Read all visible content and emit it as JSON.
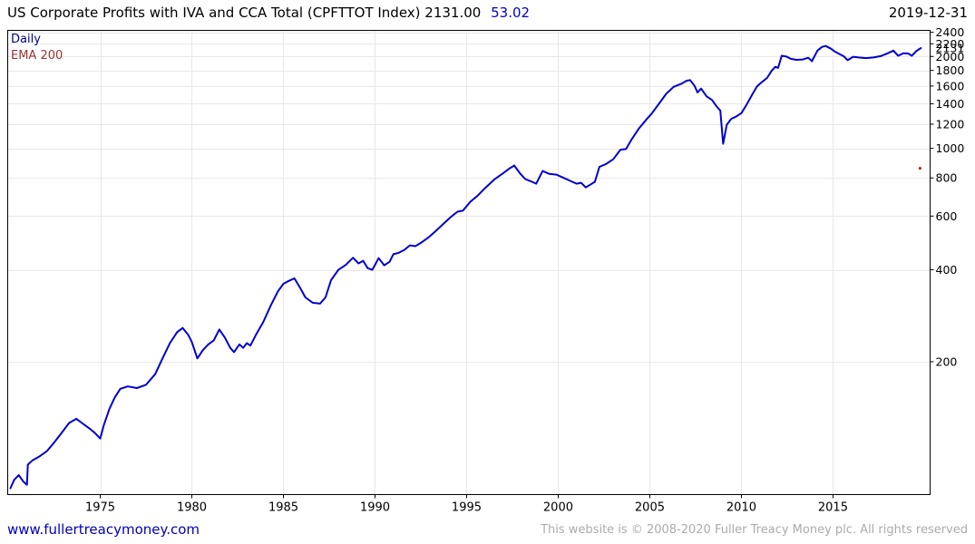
{
  "header": {
    "title": "US Corporate Profits with IVA and CCA Total (CPFTTOT Index) 2131.00",
    "change_value": "53.02",
    "date": "2019-12-31"
  },
  "legend": {
    "items": [
      {
        "label": "Daily",
        "color": "#00008B"
      },
      {
        "label": "EMA 200",
        "color": "#9C3333"
      }
    ]
  },
  "footer": {
    "site": "www.fullertreacymoney.com",
    "copyright": "This website is © 2008-2020 Fuller Treacy Money plc. All rights reserved"
  },
  "colors": {
    "line": "#0000CD",
    "grid": "#e8e8e8",
    "frame": "#000000",
    "change_text": "#0000CD",
    "site_link": "#0000BB",
    "copyright_text": "#ABABAB",
    "marker": "#CC0000"
  },
  "chart_data": {
    "type": "line",
    "title": "US Corporate Profits with IVA and CCA Total (CPFTTOT Index)",
    "last_value": 2131.0,
    "change": 53.02,
    "scale_y": "log",
    "grid": true,
    "legend_position": "top-left",
    "xlabel": "",
    "ylabel": "",
    "xlim": [
      1969.95,
      2020.3
    ],
    "ylim": [
      73.4,
      2435
    ],
    "x_ticks": [
      1975,
      1980,
      1985,
      1990,
      1995,
      2000,
      2005,
      2010,
      2015
    ],
    "y_ticks": [
      2400,
      2200,
      2000,
      1800,
      1600,
      1400,
      1200,
      1000,
      800,
      600,
      400,
      200
    ],
    "last_price_axis_label": "2131",
    "series": [
      {
        "name": "Daily",
        "color": "#0000CD",
        "points": [
          [
            1970.1,
            77
          ],
          [
            1970.3,
            82
          ],
          [
            1970.55,
            85
          ],
          [
            1970.8,
            81
          ],
          [
            1971.0,
            79
          ],
          [
            1971.05,
            92
          ],
          [
            1971.3,
            95
          ],
          [
            1971.7,
            98
          ],
          [
            1972.1,
            102
          ],
          [
            1972.5,
            109
          ],
          [
            1972.9,
            117
          ],
          [
            1973.3,
            126
          ],
          [
            1973.7,
            130
          ],
          [
            1974.0,
            126
          ],
          [
            1974.4,
            121
          ],
          [
            1974.7,
            117
          ],
          [
            1975.0,
            112
          ],
          [
            1975.2,
            124
          ],
          [
            1975.5,
            140
          ],
          [
            1975.8,
            153
          ],
          [
            1976.1,
            163
          ],
          [
            1976.5,
            166
          ],
          [
            1977.0,
            164
          ],
          [
            1977.5,
            168
          ],
          [
            1978.0,
            182
          ],
          [
            1978.4,
            205
          ],
          [
            1978.8,
            230
          ],
          [
            1979.2,
            250
          ],
          [
            1979.5,
            258
          ],
          [
            1979.8,
            245
          ],
          [
            1980.0,
            232
          ],
          [
            1980.3,
            205
          ],
          [
            1980.6,
            218
          ],
          [
            1980.9,
            228
          ],
          [
            1981.2,
            235
          ],
          [
            1981.5,
            255
          ],
          [
            1981.8,
            240
          ],
          [
            1982.1,
            222
          ],
          [
            1982.3,
            215
          ],
          [
            1982.6,
            228
          ],
          [
            1982.8,
            222
          ],
          [
            1983.0,
            230
          ],
          [
            1983.2,
            226
          ],
          [
            1983.5,
            245
          ],
          [
            1983.9,
            270
          ],
          [
            1984.3,
            305
          ],
          [
            1984.7,
            340
          ],
          [
            1985.0,
            360
          ],
          [
            1985.3,
            368
          ],
          [
            1985.6,
            375
          ],
          [
            1985.9,
            350
          ],
          [
            1986.2,
            325
          ],
          [
            1986.6,
            312
          ],
          [
            1987.0,
            310
          ],
          [
            1987.3,
            325
          ],
          [
            1987.6,
            370
          ],
          [
            1988.0,
            400
          ],
          [
            1988.4,
            415
          ],
          [
            1988.8,
            438
          ],
          [
            1989.1,
            420
          ],
          [
            1989.35,
            428
          ],
          [
            1989.6,
            405
          ],
          [
            1989.85,
            400
          ],
          [
            1990.2,
            437
          ],
          [
            1990.5,
            414
          ],
          [
            1990.8,
            425
          ],
          [
            1991.0,
            450
          ],
          [
            1991.3,
            455
          ],
          [
            1991.6,
            465
          ],
          [
            1991.9,
            481
          ],
          [
            1992.2,
            478
          ],
          [
            1992.5,
            490
          ],
          [
            1992.9,
            510
          ],
          [
            1993.3,
            535
          ],
          [
            1993.8,
            571
          ],
          [
            1994.2,
            600
          ],
          [
            1994.5,
            620
          ],
          [
            1994.8,
            625
          ],
          [
            1995.2,
            668
          ],
          [
            1995.6,
            700
          ],
          [
            1996.0,
            740
          ],
          [
            1996.5,
            790
          ],
          [
            1997.0,
            830
          ],
          [
            1997.35,
            860
          ],
          [
            1997.6,
            878
          ],
          [
            1997.9,
            830
          ],
          [
            1998.2,
            793
          ],
          [
            1998.5,
            780
          ],
          [
            1998.8,
            766
          ],
          [
            1999.15,
            843
          ],
          [
            1999.5,
            825
          ],
          [
            1999.9,
            820
          ],
          [
            2000.3,
            800
          ],
          [
            2000.7,
            780
          ],
          [
            2001.0,
            766
          ],
          [
            2001.25,
            771
          ],
          [
            2001.5,
            745
          ],
          [
            2001.75,
            760
          ],
          [
            2002.0,
            777
          ],
          [
            2002.25,
            870
          ],
          [
            2002.6,
            888
          ],
          [
            2003.0,
            921
          ],
          [
            2003.4,
            990
          ],
          [
            2003.7,
            995
          ],
          [
            2004.0,
            1069
          ],
          [
            2004.4,
            1160
          ],
          [
            2004.8,
            1240
          ],
          [
            2005.1,
            1300
          ],
          [
            2005.5,
            1400
          ],
          [
            2005.9,
            1510
          ],
          [
            2006.3,
            1590
          ],
          [
            2006.7,
            1625
          ],
          [
            2007.0,
            1665
          ],
          [
            2007.2,
            1674
          ],
          [
            2007.45,
            1600
          ],
          [
            2007.6,
            1525
          ],
          [
            2007.8,
            1570
          ],
          [
            2008.1,
            1480
          ],
          [
            2008.4,
            1440
          ],
          [
            2008.65,
            1370
          ],
          [
            2008.85,
            1330
          ],
          [
            2009.0,
            1035
          ],
          [
            2009.2,
            1195
          ],
          [
            2009.45,
            1250
          ],
          [
            2009.7,
            1270
          ],
          [
            2010.0,
            1305
          ],
          [
            2010.3,
            1395
          ],
          [
            2010.6,
            1505
          ],
          [
            2010.85,
            1595
          ],
          [
            2011.1,
            1645
          ],
          [
            2011.4,
            1700
          ],
          [
            2011.65,
            1795
          ],
          [
            2011.85,
            1850
          ],
          [
            2012.0,
            1835
          ],
          [
            2012.2,
            2010
          ],
          [
            2012.45,
            2000
          ],
          [
            2012.7,
            1965
          ],
          [
            2013.0,
            1950
          ],
          [
            2013.35,
            1955
          ],
          [
            2013.65,
            1980
          ],
          [
            2013.85,
            1930
          ],
          [
            2014.15,
            2090
          ],
          [
            2014.4,
            2150
          ],
          [
            2014.6,
            2165
          ],
          [
            2014.9,
            2120
          ],
          [
            2015.1,
            2075
          ],
          [
            2015.4,
            2030
          ],
          [
            2015.6,
            2000
          ],
          [
            2015.8,
            1945
          ],
          [
            2016.1,
            1995
          ],
          [
            2016.4,
            1985
          ],
          [
            2016.8,
            1975
          ],
          [
            2017.2,
            1985
          ],
          [
            2017.6,
            2005
          ],
          [
            2018.0,
            2050
          ],
          [
            2018.3,
            2090
          ],
          [
            2018.55,
            2010
          ],
          [
            2018.85,
            2050
          ],
          [
            2019.1,
            2045
          ],
          [
            2019.3,
            2010
          ],
          [
            2019.55,
            2085
          ],
          [
            2019.8,
            2131
          ]
        ]
      }
    ],
    "markers": [
      {
        "x": 2019.75,
        "y": 860,
        "color": "#CC0000",
        "name": "red-dot"
      }
    ]
  }
}
